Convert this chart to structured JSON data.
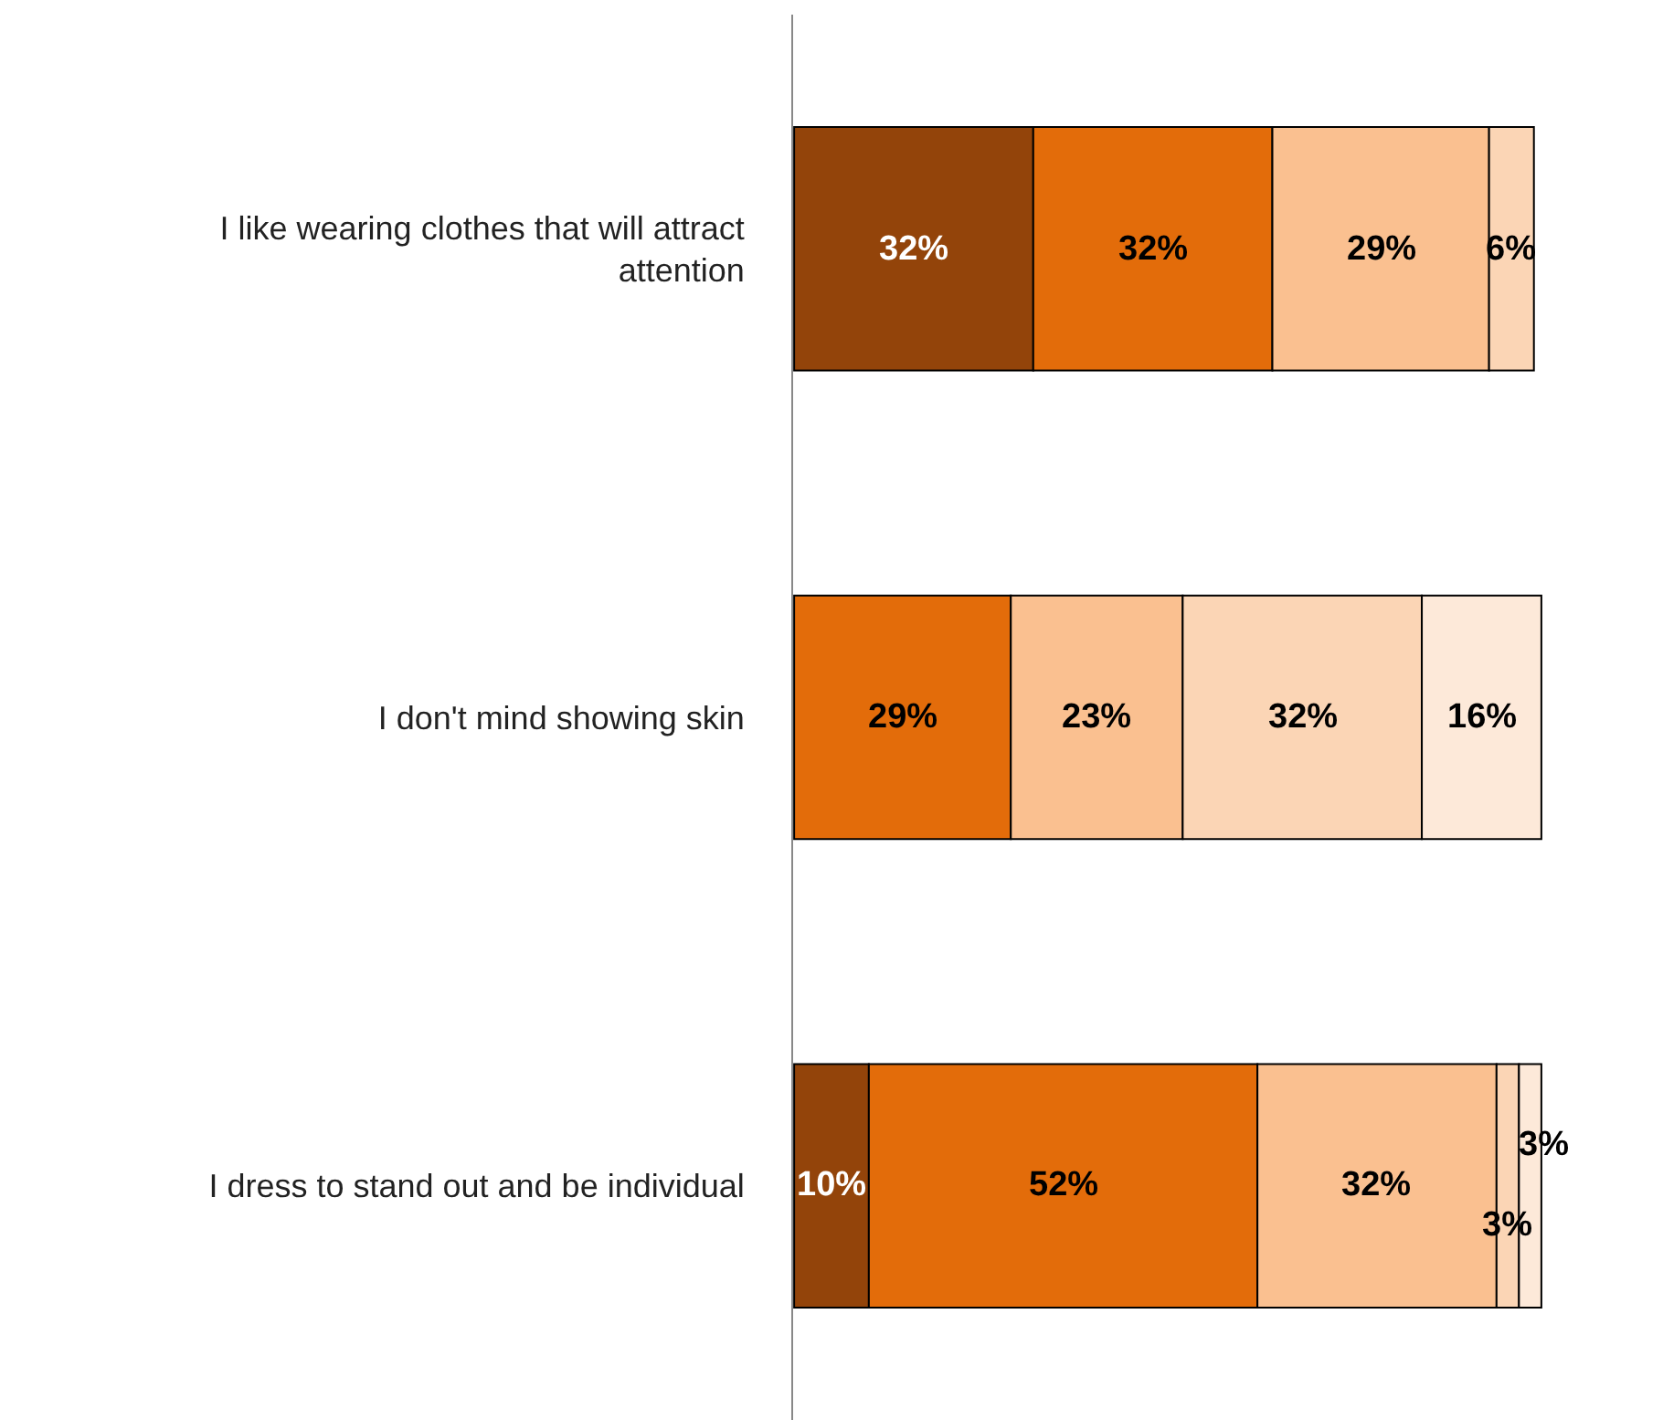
{
  "chart_data": {
    "type": "bar",
    "orientation": "horizontal",
    "stacked": true,
    "categories": [
      "I like wearing clothes that will attract attention",
      "I don't mind showing skin",
      "I dress to stand out and be individual"
    ],
    "series": [
      {
        "color": "#93440a",
        "values": [
          32,
          null,
          10
        ],
        "value_labels": [
          "32%",
          null,
          "10%"
        ]
      },
      {
        "color": "#e36c0a",
        "values": [
          32,
          29,
          52
        ],
        "value_labels": [
          "32%",
          "29%",
          "52%"
        ]
      },
      {
        "color": "#fac090",
        "values": [
          29,
          23,
          32
        ],
        "value_labels": [
          "29%",
          "23%",
          "32%"
        ]
      },
      {
        "color": "#fbd5b5",
        "values": [
          6,
          32,
          3
        ],
        "value_labels": [
          "6%",
          "32%",
          "3%"
        ]
      },
      {
        "color": "#fde9d9",
        "values": [
          null,
          16,
          3
        ],
        "value_labels": [
          null,
          "16%",
          "3%"
        ]
      }
    ],
    "tick_labels": "y"
  }
}
